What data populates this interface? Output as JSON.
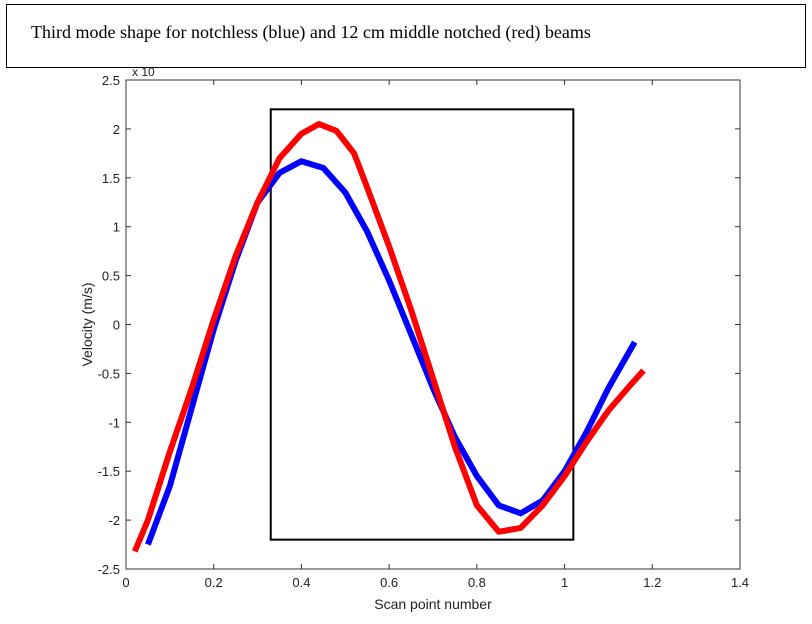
{
  "caption": "Third mode shape for notchless (blue) and 12 cm middle notched (red) beams",
  "chart_data": {
    "type": "line",
    "title": "",
    "xlabel": "Scan point number",
    "ylabel": "Velocity (m/s)",
    "xlim": [
      0,
      1.4
    ],
    "ylim": [
      -2.5,
      2.5
    ],
    "xticks": [
      0,
      0.2,
      0.4,
      0.6,
      0.8,
      1,
      1.2,
      1.4
    ],
    "yticks": [
      -2.5,
      -2,
      -1.5,
      -1,
      -0.5,
      0,
      0.5,
      1,
      1.5,
      2,
      2.5
    ],
    "xtick_labels": [
      "0",
      "0.2",
      "0.4",
      "0.6",
      "0.8",
      "1",
      "1.2",
      "1.4"
    ],
    "ytick_labels": [
      "-2.5",
      "-2",
      "-1.5",
      "-1",
      "-0.5",
      "0",
      "0.5",
      "1",
      "1.5",
      "2",
      "2.5"
    ],
    "exponent_label": "x 10",
    "grid": false,
    "series": [
      {
        "color": "#0000ff",
        "x": [
          0.05,
          0.1,
          0.15,
          0.2,
          0.25,
          0.3,
          0.35,
          0.4,
          0.45,
          0.5,
          0.55,
          0.6,
          0.65,
          0.7,
          0.75,
          0.8,
          0.85,
          0.9,
          0.95,
          1.0,
          1.05,
          1.1,
          1.16
        ],
        "y": [
          -2.25,
          -1.65,
          -0.85,
          -0.05,
          0.65,
          1.25,
          1.55,
          1.67,
          1.6,
          1.35,
          0.95,
          0.45,
          -0.1,
          -0.65,
          -1.15,
          -1.55,
          -1.85,
          -1.93,
          -1.8,
          -1.5,
          -1.1,
          -0.65,
          -0.18
        ]
      },
      {
        "color": "#ff0000",
        "x": [
          0.02,
          0.05,
          0.1,
          0.15,
          0.2,
          0.25,
          0.3,
          0.35,
          0.4,
          0.44,
          0.48,
          0.52,
          0.55,
          0.6,
          0.65,
          0.7,
          0.75,
          0.8,
          0.85,
          0.9,
          0.95,
          1.0,
          1.05,
          1.1,
          1.15,
          1.18
        ],
        "y": [
          -2.32,
          -2.0,
          -1.3,
          -0.65,
          0.05,
          0.7,
          1.25,
          1.7,
          1.95,
          2.05,
          1.98,
          1.75,
          1.4,
          0.8,
          0.15,
          -0.55,
          -1.25,
          -1.85,
          -2.12,
          -2.08,
          -1.85,
          -1.55,
          -1.2,
          -0.88,
          -0.62,
          -0.47
        ]
      }
    ],
    "highlight_box": {
      "x": [
        0.33,
        1.02
      ],
      "y": [
        -2.2,
        2.2
      ]
    }
  }
}
